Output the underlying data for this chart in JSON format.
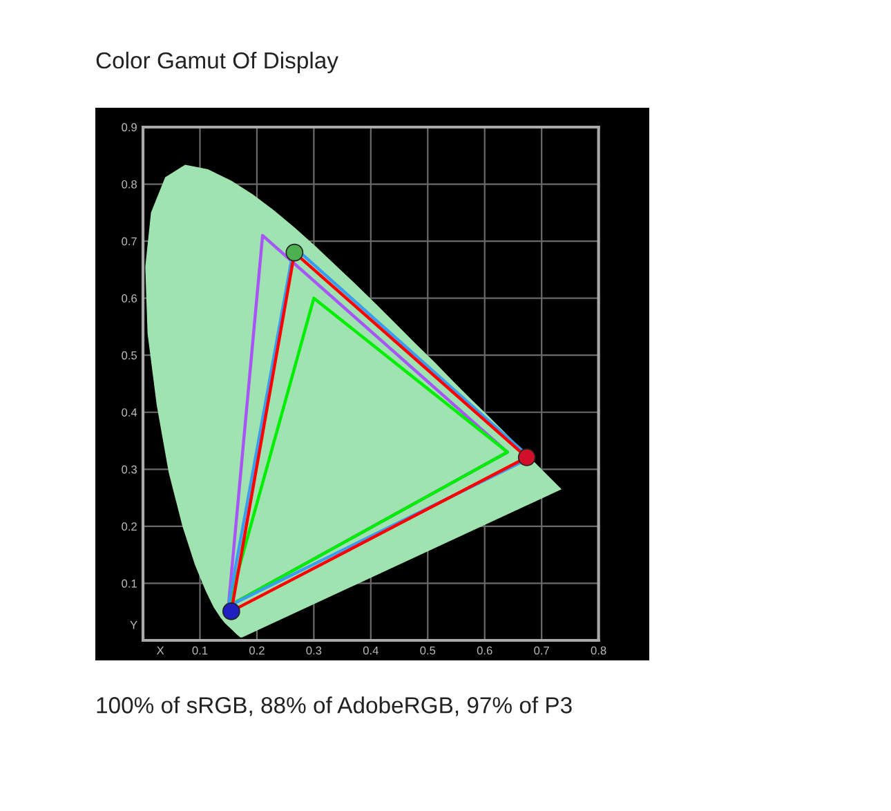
{
  "chart_data": {
    "type": "line",
    "title": "Color Gamut Of Display",
    "xlabel": "X",
    "ylabel": "Y",
    "annotations": [
      "100% of sRGB, 88% of AdobeRGB, 97% of P3"
    ],
    "xlim": [
      0,
      0.8
    ],
    "ylim": [
      0,
      0.9
    ],
    "xticks": [
      0.1,
      0.2,
      0.3,
      0.4,
      0.5,
      0.6,
      0.7,
      0.8
    ],
    "yticks": [
      0.1,
      0.2,
      0.3,
      0.4,
      0.5,
      0.6,
      0.7,
      0.8,
      0.9
    ],
    "grid": true,
    "series": [
      {
        "type": "area",
        "color": "#9fe3b0",
        "x": [
          0.174,
          0.171,
          0.164,
          0.157,
          0.144,
          0.136,
          0.124,
          0.11,
          0.091,
          0.069,
          0.045,
          0.024,
          0.008,
          0.004,
          0.014,
          0.039,
          0.074,
          0.114,
          0.155,
          0.193,
          0.23,
          0.266,
          0.302,
          0.337,
          0.373,
          0.409,
          0.444,
          0.479,
          0.513,
          0.545,
          0.575,
          0.603,
          0.627,
          0.666,
          0.692,
          0.719,
          0.735
        ],
        "values": [
          0.005,
          0.005,
          0.011,
          0.018,
          0.03,
          0.04,
          0.058,
          0.087,
          0.133,
          0.201,
          0.295,
          0.413,
          0.538,
          0.655,
          0.75,
          0.812,
          0.834,
          0.826,
          0.806,
          0.782,
          0.754,
          0.724,
          0.692,
          0.659,
          0.625,
          0.59,
          0.555,
          0.52,
          0.487,
          0.454,
          0.424,
          0.397,
          0.373,
          0.334,
          0.308,
          0.281,
          0.265
        ]
      },
      {
        "color": "#a855f7",
        "x": [
          0.64,
          0.21,
          0.15,
          0.64
        ],
        "values": [
          0.33,
          0.71,
          0.06,
          0.33
        ]
      },
      {
        "color": "#00ee00",
        "x": [
          0.64,
          0.3,
          0.15,
          0.64
        ],
        "values": [
          0.33,
          0.6,
          0.06,
          0.33
        ]
      },
      {
        "color": "#3b9cf0",
        "x": [
          0.68,
          0.265,
          0.15,
          0.68
        ],
        "values": [
          0.32,
          0.69,
          0.06,
          0.32
        ]
      },
      {
        "color": "#ff0000",
        "x": [
          0.674,
          0.266,
          0.155,
          0.674
        ],
        "values": [
          0.321,
          0.68,
          0.051,
          0.321
        ]
      },
      {
        "type": "scatter",
        "marker": "circle",
        "colors": [
          "#4caf50",
          "#d0102a",
          "#2020c0"
        ],
        "x": [
          0.266,
          0.674,
          0.155
        ],
        "values": [
          0.68,
          0.321,
          0.051
        ]
      }
    ]
  }
}
